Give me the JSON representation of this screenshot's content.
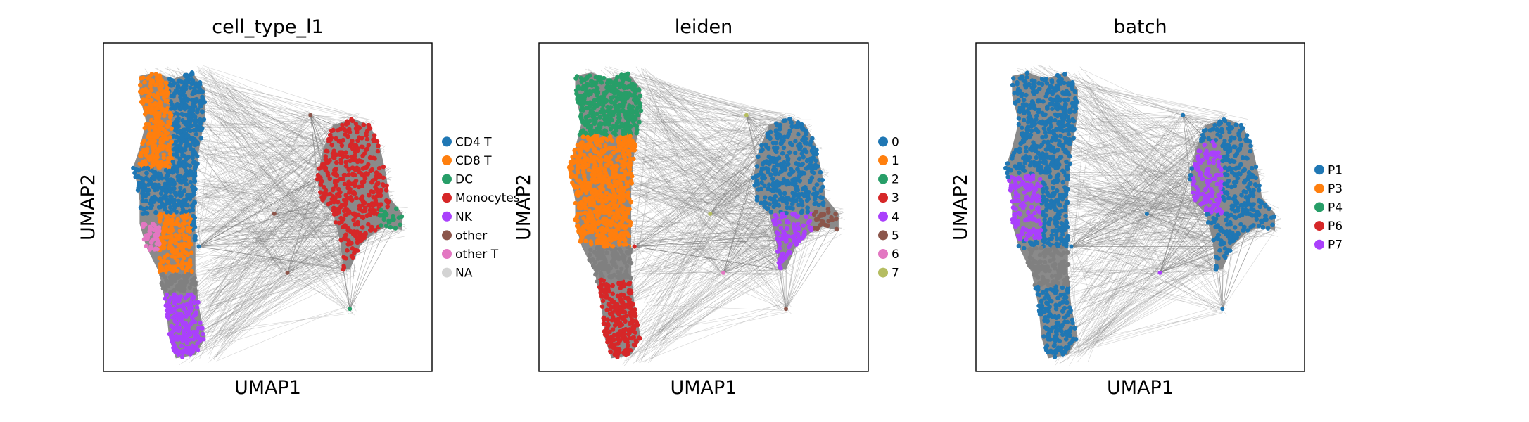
{
  "figure": {
    "background": "#ffffff"
  },
  "chart_data": [
    {
      "type": "scatter",
      "title": "cell_type_l1",
      "xlabel": "UMAP1",
      "ylabel": "UMAP2",
      "ticks": "none",
      "legend_position": "right",
      "edges_color": "#808080",
      "legend": [
        {
          "label": "CD4 T",
          "color": "#1f77b4"
        },
        {
          "label": "CD8 T",
          "color": "#ff7f0e"
        },
        {
          "label": "DC",
          "color": "#279e68"
        },
        {
          "label": "Monocytes",
          "color": "#d62728"
        },
        {
          "label": "NK",
          "color": "#aa40fc"
        },
        {
          "label": "other",
          "color": "#8c564b"
        },
        {
          "label": "other T",
          "color": "#e377c2"
        },
        {
          "label": "NA",
          "color": "#d3d3d3"
        }
      ]
    },
    {
      "type": "scatter",
      "title": "leiden",
      "xlabel": "UMAP1",
      "ylabel": "UMAP2",
      "ticks": "none",
      "legend_position": "right",
      "edges_color": "#808080",
      "legend": [
        {
          "label": "0",
          "color": "#1f77b4"
        },
        {
          "label": "1",
          "color": "#ff7f0e"
        },
        {
          "label": "2",
          "color": "#279e68"
        },
        {
          "label": "3",
          "color": "#d62728"
        },
        {
          "label": "4",
          "color": "#aa40fc"
        },
        {
          "label": "5",
          "color": "#8c564b"
        },
        {
          "label": "6",
          "color": "#e377c2"
        },
        {
          "label": "7",
          "color": "#b5bd61"
        }
      ]
    },
    {
      "type": "scatter",
      "title": "batch",
      "xlabel": "UMAP1",
      "ylabel": "UMAP2",
      "ticks": "none",
      "legend_position": "right",
      "edges_color": "#808080",
      "legend": [
        {
          "label": "P1",
          "color": "#1f77b4"
        },
        {
          "label": "P3",
          "color": "#ff7f0e"
        },
        {
          "label": "P4",
          "color": "#279e68"
        },
        {
          "label": "P6",
          "color": "#d62728"
        },
        {
          "label": "P7",
          "color": "#aa40fc"
        }
      ]
    }
  ]
}
